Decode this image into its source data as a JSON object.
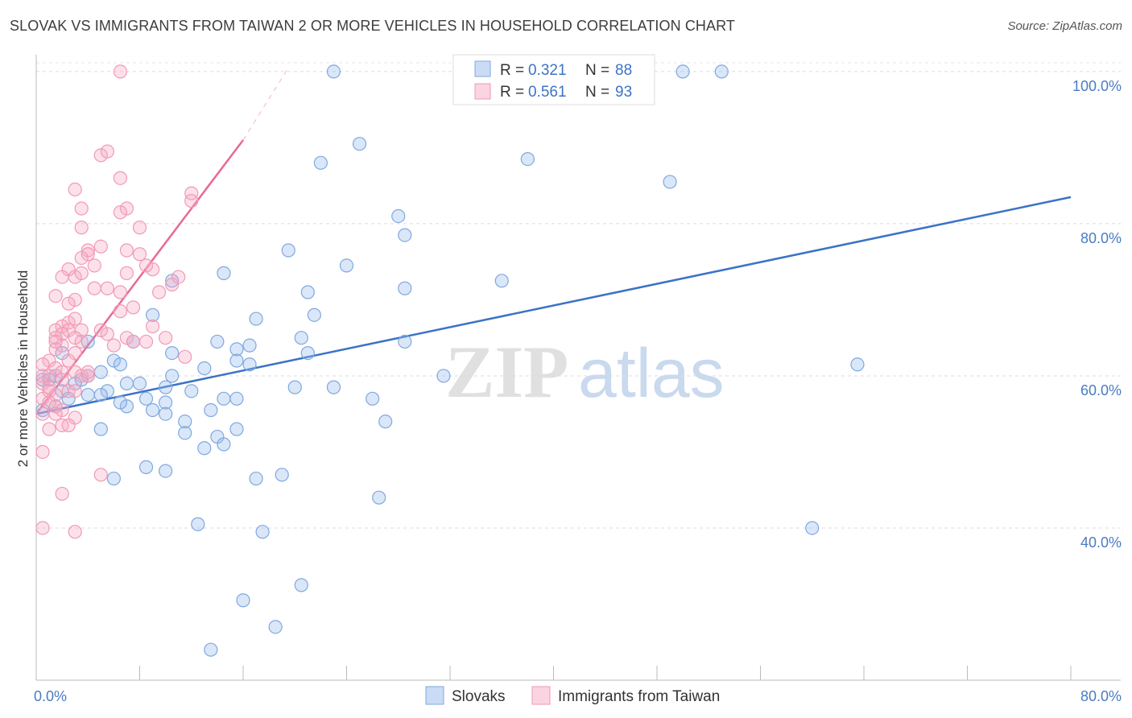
{
  "title": "SLOVAK VS IMMIGRANTS FROM TAIWAN 2 OR MORE VEHICLES IN HOUSEHOLD CORRELATION CHART",
  "source": "Source: ZipAtlas.com",
  "watermark": {
    "zip": "ZIP",
    "atlas": "atlas"
  },
  "chart_data": {
    "type": "scatter",
    "ylabel": "2 or more Vehicles in Household",
    "xlim": [
      0,
      80
    ],
    "ylim": [
      20,
      102
    ],
    "x_tick_labels": [
      {
        "value": 0,
        "label": "0.0%"
      },
      {
        "value": 80,
        "label": "80.0%"
      }
    ],
    "y_tick_labels": [
      {
        "value": 100,
        "label": "100.0%"
      },
      {
        "value": 80,
        "label": "80.0%"
      },
      {
        "value": 60,
        "label": "60.0%"
      },
      {
        "value": 40,
        "label": "40.0%"
      }
    ],
    "y_grid": [
      100,
      80,
      60,
      40
    ],
    "x_minor_ticks": [
      8,
      16,
      24,
      32,
      40,
      48,
      56,
      64,
      72,
      80
    ],
    "legend_top": [
      {
        "r_label": "R = ",
        "r_value": "0.321",
        "n_label": "N = ",
        "n_value": "88"
      },
      {
        "r_label": "R = ",
        "r_value": "0.561",
        "n_label": "N = ",
        "n_value": "93"
      }
    ],
    "series": [
      {
        "name": "Slovaks",
        "color": "#7fa8e0",
        "fill": "rgba(150,185,235,0.35)",
        "trend_color": "#3b73c6",
        "trend": {
          "x1": 0,
          "y1": 55.0,
          "x2": 80,
          "y2": 83.5
        },
        "points": [
          [
            23,
            100
          ],
          [
            50,
            100
          ],
          [
            53,
            100
          ],
          [
            25,
            90.5
          ],
          [
            22,
            88
          ],
          [
            38,
            88.5
          ],
          [
            49,
            85.5
          ],
          [
            28,
            81
          ],
          [
            28.5,
            78.5
          ],
          [
            19.5,
            76.5
          ],
          [
            24,
            74.5
          ],
          [
            14.5,
            73.5
          ],
          [
            36,
            72.5
          ],
          [
            28.5,
            71.5
          ],
          [
            10.5,
            72.5
          ],
          [
            21,
            71
          ],
          [
            9,
            68
          ],
          [
            17,
            67.5
          ],
          [
            21.5,
            68
          ],
          [
            4,
            64.5
          ],
          [
            7.5,
            64.5
          ],
          [
            14,
            64.5
          ],
          [
            15.5,
            63.5
          ],
          [
            16.5,
            64
          ],
          [
            20.5,
            65
          ],
          [
            28.5,
            64.5
          ],
          [
            2,
            63
          ],
          [
            10.5,
            63
          ],
          [
            21,
            63
          ],
          [
            6,
            62
          ],
          [
            6.5,
            61.5
          ],
          [
            15.5,
            62
          ],
          [
            13,
            61
          ],
          [
            16.5,
            61.5
          ],
          [
            63.5,
            61.5
          ],
          [
            1.5,
            60
          ],
          [
            3.5,
            59.5
          ],
          [
            5,
            60.5
          ],
          [
            10.5,
            60
          ],
          [
            31.5,
            60
          ],
          [
            0.5,
            59.5
          ],
          [
            1,
            59.5
          ],
          [
            3,
            59
          ],
          [
            7,
            59
          ],
          [
            8,
            59
          ],
          [
            10,
            58.5
          ],
          [
            20,
            58.5
          ],
          [
            23,
            58.5
          ],
          [
            2,
            58
          ],
          [
            5.5,
            58
          ],
          [
            4,
            57.5
          ],
          [
            26,
            57
          ],
          [
            14.5,
            57
          ],
          [
            15.5,
            57
          ],
          [
            8.5,
            57
          ],
          [
            7,
            56
          ],
          [
            10,
            56.5
          ],
          [
            1.5,
            56
          ],
          [
            6.5,
            56.5
          ],
          [
            9,
            55.5
          ],
          [
            0.5,
            55.5
          ],
          [
            13.5,
            55.5
          ],
          [
            10,
            55
          ],
          [
            27,
            54
          ],
          [
            11.5,
            54
          ],
          [
            15.5,
            53
          ],
          [
            11.5,
            52.5
          ],
          [
            5,
            53
          ],
          [
            14,
            52
          ],
          [
            13,
            50.5
          ],
          [
            14.5,
            51
          ],
          [
            8.5,
            48
          ],
          [
            10,
            47.5
          ],
          [
            19,
            47
          ],
          [
            6,
            46.5
          ],
          [
            17,
            46.5
          ],
          [
            26.5,
            44
          ],
          [
            60,
            40
          ],
          [
            12.5,
            40.5
          ],
          [
            17.5,
            39.5
          ],
          [
            20.5,
            32.5
          ],
          [
            16,
            30.5
          ],
          [
            18.5,
            27
          ],
          [
            13.5,
            24
          ],
          [
            4,
            60
          ],
          [
            2.5,
            57
          ],
          [
            5,
            57.5
          ],
          [
            12,
            58
          ]
        ]
      },
      {
        "name": "Immigrants from Taiwan",
        "color": "#f09ab4",
        "fill": "rgba(245,170,195,0.35)",
        "trend_color": "#e86a93",
        "trend": {
          "x1": 0,
          "y1": 55.0,
          "x2": 16,
          "y2": 91.0
        },
        "trend_dashed_end": {
          "x": 19.5,
          "y": 100.5
        },
        "points": [
          [
            6.5,
            100
          ],
          [
            5,
            89
          ],
          [
            5.5,
            89.5
          ],
          [
            6.5,
            86
          ],
          [
            3,
            84.5
          ],
          [
            12,
            84
          ],
          [
            12,
            83
          ],
          [
            3.5,
            82
          ],
          [
            7,
            82
          ],
          [
            6.5,
            81.5
          ],
          [
            8,
            79.5
          ],
          [
            3.5,
            79.5
          ],
          [
            5,
            77
          ],
          [
            4,
            76.5
          ],
          [
            7,
            76.5
          ],
          [
            4,
            76
          ],
          [
            8,
            76
          ],
          [
            3.5,
            75.5
          ],
          [
            8.5,
            74.5
          ],
          [
            2.5,
            74
          ],
          [
            9,
            74
          ],
          [
            7,
            73.5
          ],
          [
            3,
            73
          ],
          [
            3.5,
            73.5
          ],
          [
            2,
            73
          ],
          [
            4.5,
            71.5
          ],
          [
            5.5,
            71.5
          ],
          [
            6.5,
            71
          ],
          [
            1.5,
            70.5
          ],
          [
            3,
            70
          ],
          [
            2.5,
            69.5
          ],
          [
            6.5,
            68.5
          ],
          [
            2.5,
            67
          ],
          [
            2,
            66.5
          ],
          [
            1.5,
            66
          ],
          [
            2.5,
            66
          ],
          [
            3.5,
            66
          ],
          [
            1.5,
            65
          ],
          [
            2,
            65.5
          ],
          [
            3,
            65
          ],
          [
            3.5,
            64.5
          ],
          [
            5.5,
            65.5
          ],
          [
            7,
            65
          ],
          [
            7.5,
            64.5
          ],
          [
            8.5,
            64.5
          ],
          [
            2,
            64
          ],
          [
            1.5,
            63.5
          ],
          [
            3,
            63
          ],
          [
            11.5,
            62.5
          ],
          [
            1,
            62
          ],
          [
            0.5,
            61.5
          ],
          [
            1.5,
            61
          ],
          [
            2,
            60.5
          ],
          [
            3,
            60.5
          ],
          [
            0.5,
            60
          ],
          [
            1,
            60
          ],
          [
            2,
            59.5
          ],
          [
            3.5,
            60
          ],
          [
            4,
            60
          ],
          [
            0.5,
            59
          ],
          [
            1,
            58.5
          ],
          [
            2.5,
            58
          ],
          [
            3,
            58
          ],
          [
            1.5,
            57.5
          ],
          [
            0.5,
            57
          ],
          [
            1,
            56.5
          ],
          [
            1.5,
            56
          ],
          [
            2,
            55.5
          ],
          [
            0.5,
            55
          ],
          [
            1.5,
            55
          ],
          [
            3,
            54.5
          ],
          [
            2,
            53.5
          ],
          [
            2.5,
            53.5
          ],
          [
            1,
            53
          ],
          [
            0.5,
            50
          ],
          [
            5,
            47
          ],
          [
            2,
            44.5
          ],
          [
            0.5,
            40
          ],
          [
            3,
            39.5
          ],
          [
            1,
            58
          ],
          [
            2.5,
            62
          ],
          [
            4,
            60.5
          ],
          [
            6,
            64
          ],
          [
            5,
            66
          ],
          [
            9,
            66.5
          ],
          [
            10,
            65
          ],
          [
            7.5,
            69
          ],
          [
            9.5,
            71
          ],
          [
            10.5,
            72
          ],
          [
            11,
            73
          ],
          [
            4.5,
            74.5
          ],
          [
            3,
            67.5
          ],
          [
            1.5,
            64.5
          ]
        ]
      }
    ]
  }
}
